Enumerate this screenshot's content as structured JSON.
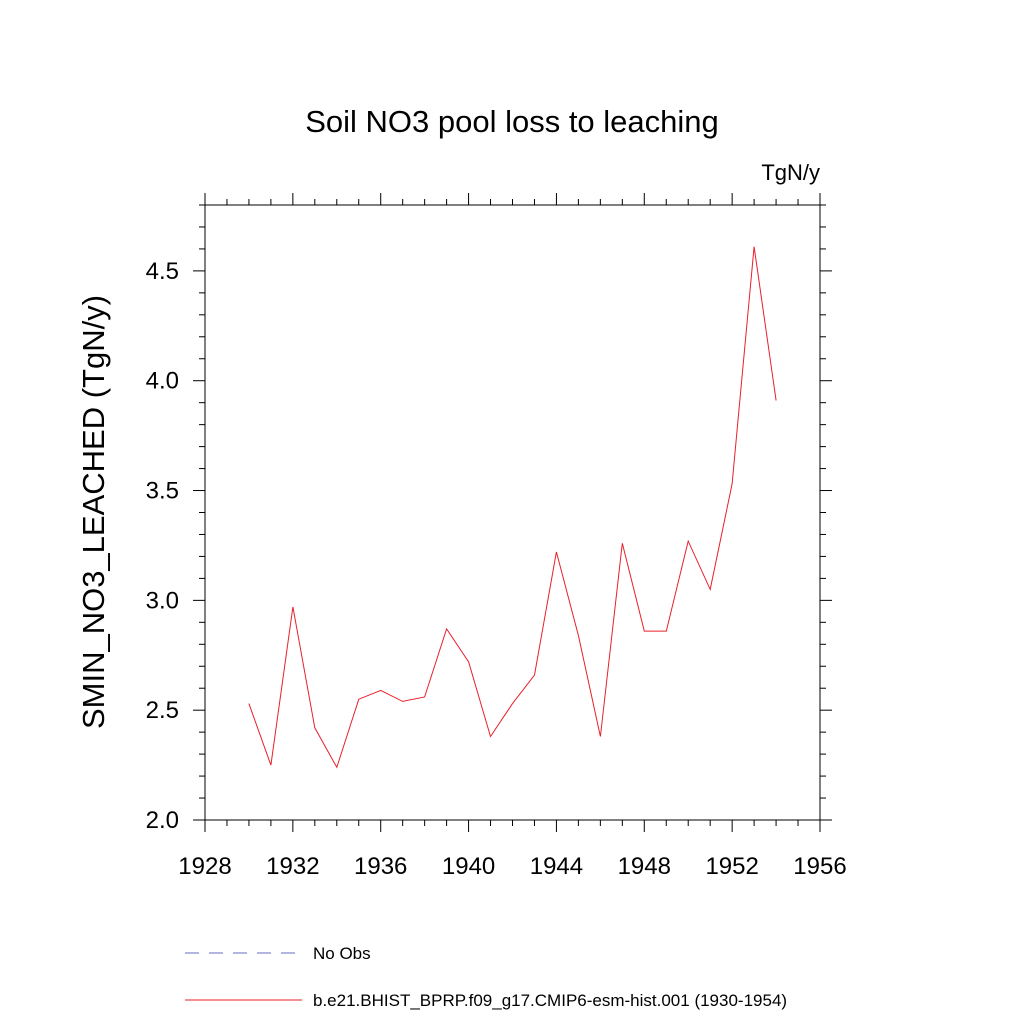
{
  "chart_data": {
    "type": "line",
    "title": "Soil NO3 pool loss to leaching",
    "units": "TgN/y",
    "ylabel": "SMIN_NO3_LEACHED  (TgN/y)",
    "xlabel": "",
    "xlim": [
      1928,
      1956
    ],
    "ylim": [
      2.0,
      4.8
    ],
    "x_ticks": [
      1928,
      1932,
      1936,
      1940,
      1944,
      1948,
      1952,
      1956
    ],
    "x_tick_labels": [
      "1928",
      "1932",
      "1936",
      "1940",
      "1944",
      "1948",
      "1952",
      "1956"
    ],
    "y_ticks": [
      2.0,
      2.5,
      3.0,
      3.5,
      4.0,
      4.5
    ],
    "y_tick_labels": [
      "2.0",
      "2.5",
      "3.0",
      "3.5",
      "4.0",
      "4.5"
    ],
    "grid": false,
    "legend_position": "bottom",
    "series": [
      {
        "name": "No Obs",
        "color": "#6b6bc4",
        "style": "dashed",
        "x": [],
        "y": []
      },
      {
        "name": "b.e21.BHIST_BPRP.f09_g17.CMIP6-esm-hist.001 (1930-1954)",
        "color": "#e8202a",
        "style": "solid",
        "x": [
          1930,
          1931,
          1932,
          1933,
          1934,
          1935,
          1936,
          1937,
          1938,
          1939,
          1940,
          1941,
          1942,
          1943,
          1944,
          1945,
          1946,
          1947,
          1948,
          1949,
          1950,
          1951,
          1952,
          1953,
          1954
        ],
        "y": [
          2.53,
          2.25,
          2.97,
          2.42,
          2.24,
          2.55,
          2.59,
          2.54,
          2.56,
          2.87,
          2.72,
          2.38,
          2.53,
          2.66,
          3.22,
          2.84,
          2.38,
          3.26,
          2.86,
          2.86,
          3.27,
          3.05,
          3.53,
          4.61,
          3.91
        ]
      }
    ]
  }
}
